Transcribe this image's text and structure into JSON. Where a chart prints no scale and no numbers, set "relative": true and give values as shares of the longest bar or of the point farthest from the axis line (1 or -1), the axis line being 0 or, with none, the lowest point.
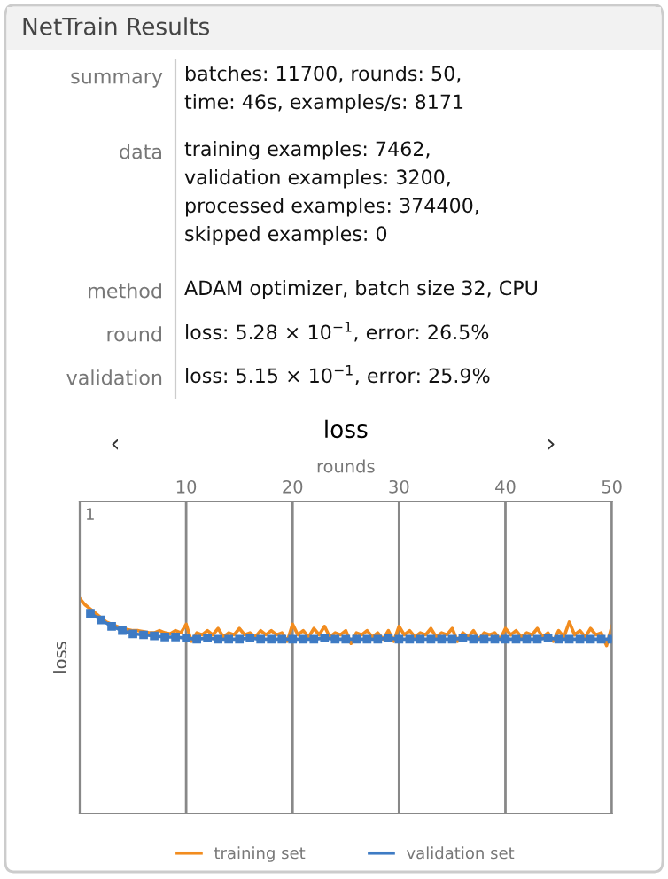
{
  "chart_data": [
    {
      "type": "other",
      "title": "NetTrain Results",
      "annotations": [
        "summary",
        "batches: 11700, rounds: 50,\ntime: 46s, examples/s: 8171",
        "data",
        "training examples: 7462,\nvalidation examples: 3200,\nprocessed examples: 374400,\nskipped examples: 0",
        "method",
        "ADAM optimizer, batch size 32, CPU",
        "round",
        "loss: 5.28 × 10$^{−1}$, error: 26.5%",
        "validation",
        "loss: 5.15 × 10$^{−1}$, error: 25.9%"
      ]
    },
    {
      "type": "line",
      "title": "loss",
      "xlabel": "rounds",
      "ylabel": "loss",
      "relative": true,
      "xlim": [
        0,
        50
      ],
      "xticks": [
        10,
        20,
        30,
        40,
        50
      ],
      "grid": "x",
      "legend": "bottom",
      "annotations": [
        "‹",
        "›",
        "1"
      ],
      "series": [
        {
          "name": "training set",
          "color": "#f28c1e",
          "marker": "none",
          "x": [
            0,
            0.5,
            1,
            1.5,
            2,
            2.5,
            3,
            3.5,
            4,
            4.5,
            5,
            5.5,
            6,
            6.5,
            7,
            7.5,
            8,
            8.5,
            9,
            9.5,
            10,
            10.5,
            11,
            11.5,
            12,
            12.5,
            13,
            13.5,
            14,
            14.5,
            15,
            15.5,
            16,
            16.5,
            17,
            17.5,
            18,
            18.5,
            19,
            19.5,
            20,
            20.5,
            21,
            21.5,
            22,
            22.5,
            23,
            23.5,
            24,
            24.5,
            25,
            25.5,
            26,
            26.5,
            27,
            27.5,
            28,
            28.5,
            29,
            29.5,
            30,
            30.5,
            31,
            31.5,
            32,
            32.5,
            33,
            33.5,
            34,
            34.5,
            35,
            35.5,
            36,
            36.5,
            37,
            37.5,
            38,
            38.5,
            39,
            39.5,
            40,
            40.5,
            41,
            41.5,
            42,
            42.5,
            43,
            43.5,
            44,
            44.5,
            45,
            45.5,
            46,
            46.5,
            47,
            47.5,
            48,
            48.5,
            49,
            49.5,
            50
          ],
          "values": [
            1.0,
            0.97,
            0.95,
            0.93,
            0.91,
            0.89,
            0.88,
            0.87,
            0.86,
            0.855,
            0.85,
            0.85,
            0.845,
            0.84,
            0.84,
            0.85,
            0.84,
            0.835,
            0.85,
            0.84,
            0.88,
            0.8,
            0.84,
            0.83,
            0.85,
            0.83,
            0.86,
            0.82,
            0.84,
            0.83,
            0.86,
            0.83,
            0.84,
            0.82,
            0.85,
            0.83,
            0.85,
            0.83,
            0.84,
            0.8,
            0.88,
            0.83,
            0.85,
            0.82,
            0.86,
            0.83,
            0.87,
            0.82,
            0.84,
            0.83,
            0.85,
            0.79,
            0.84,
            0.83,
            0.85,
            0.82,
            0.84,
            0.81,
            0.85,
            0.8,
            0.87,
            0.83,
            0.85,
            0.82,
            0.84,
            0.83,
            0.86,
            0.82,
            0.84,
            0.83,
            0.86,
            0.8,
            0.84,
            0.82,
            0.85,
            0.81,
            0.84,
            0.83,
            0.84,
            0.81,
            0.86,
            0.83,
            0.85,
            0.82,
            0.84,
            0.83,
            0.86,
            0.82,
            0.84,
            0.8,
            0.85,
            0.82,
            0.89,
            0.83,
            0.85,
            0.82,
            0.86,
            0.83,
            0.84,
            0.78,
            0.87
          ]
        },
        {
          "name": "validation set",
          "color": "#3e7bc4",
          "marker": "square",
          "x": [
            1,
            2,
            3,
            4,
            5,
            6,
            7,
            8,
            9,
            10,
            11,
            12,
            13,
            14,
            15,
            16,
            17,
            18,
            19,
            20,
            21,
            22,
            23,
            24,
            25,
            26,
            27,
            28,
            29,
            30,
            31,
            32,
            33,
            34,
            35,
            36,
            37,
            38,
            39,
            40,
            41,
            42,
            43,
            44,
            45,
            46,
            47,
            48,
            49,
            50
          ],
          "values": [
            0.93,
            0.9,
            0.87,
            0.85,
            0.835,
            0.83,
            0.825,
            0.82,
            0.82,
            0.815,
            0.81,
            0.815,
            0.81,
            0.81,
            0.81,
            0.815,
            0.81,
            0.81,
            0.81,
            0.81,
            0.81,
            0.81,
            0.815,
            0.81,
            0.81,
            0.81,
            0.81,
            0.81,
            0.815,
            0.81,
            0.81,
            0.81,
            0.81,
            0.81,
            0.81,
            0.815,
            0.81,
            0.81,
            0.81,
            0.81,
            0.81,
            0.81,
            0.81,
            0.815,
            0.81,
            0.81,
            0.81,
            0.81,
            0.81,
            0.81
          ]
        }
      ]
    }
  ]
}
